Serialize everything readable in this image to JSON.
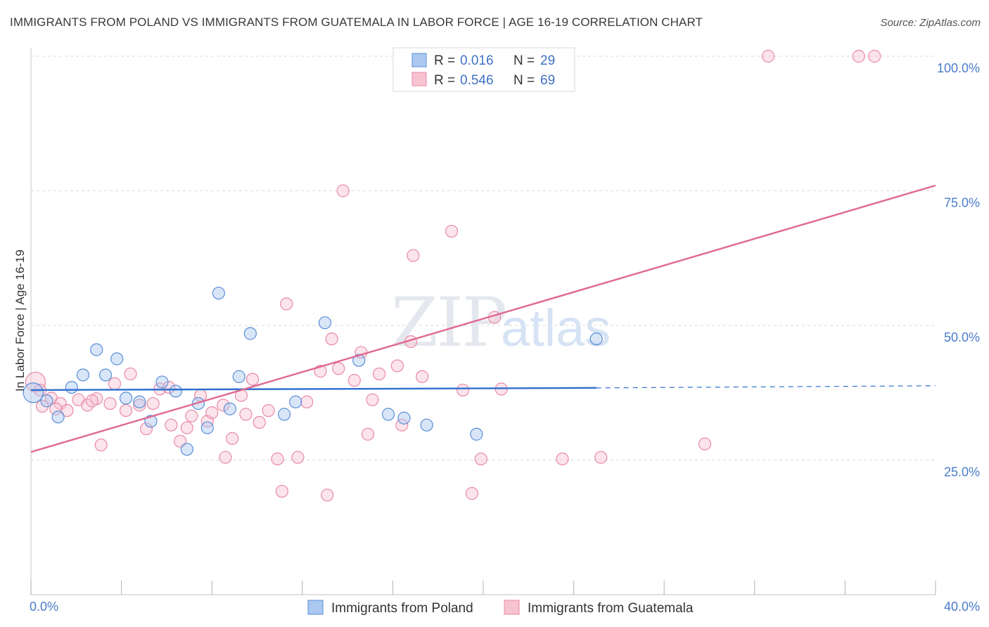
{
  "title": "IMMIGRANTS FROM POLAND VS IMMIGRANTS FROM GUATEMALA IN LABOR FORCE | AGE 16-19 CORRELATION CHART",
  "source": "Source: ZipAtlas.com",
  "watermark": {
    "zip": "ZIP",
    "atlas": "atlas"
  },
  "colors": {
    "poland_fill": "#aac8f0",
    "poland_stroke": "#5b8ed8",
    "poland_line": "#2f6fcf",
    "guatemala_fill": "#f7c3d2",
    "guatemala_stroke": "#e88aa6",
    "guatemala_line": "#e06890",
    "tick_text": "#4a7cc9",
    "grid": "#d9d9d9"
  },
  "legend": {
    "r_label": "R =",
    "n_label": "N =",
    "rows": [
      {
        "r": "0.016",
        "n": "29"
      },
      {
        "r": "0.546",
        "n": "69"
      }
    ]
  },
  "chart_data": {
    "type": "scatter",
    "title": "IMMIGRANTS FROM POLAND VS IMMIGRANTS FROM GUATEMALA IN LABOR FORCE | AGE 16-19 CORRELATION CHART",
    "xlabel": "",
    "ylabel": "In Labor Force | Age 16-19",
    "xlim": [
      0,
      40
    ],
    "ylim": [
      0,
      100
    ],
    "x_tick_labels": [
      "0.0%",
      "40.0%"
    ],
    "y_ticks": [
      25,
      50,
      75,
      100
    ],
    "y_tick_labels": [
      "25.0%",
      "50.0%",
      "75.0%",
      "100.0%"
    ],
    "grid": true,
    "legend_position": "top-center",
    "series": [
      {
        "name": "Immigrants from Poland",
        "r": 0.016,
        "n": 29,
        "trend": {
          "x0": 0,
          "y0": 38.0,
          "x1": 25,
          "y1": 38.4,
          "dashed_to_x": 40,
          "dashed_to_y": 38.8
        },
        "points": [
          [
            0.1,
            37.5
          ],
          [
            0.7,
            36.0
          ],
          [
            1.2,
            33.0
          ],
          [
            1.8,
            38.5
          ],
          [
            2.3,
            40.8
          ],
          [
            2.9,
            45.5
          ],
          [
            3.3,
            40.8
          ],
          [
            3.8,
            43.8
          ],
          [
            4.2,
            36.5
          ],
          [
            4.8,
            35.8
          ],
          [
            5.3,
            32.2
          ],
          [
            5.8,
            39.5
          ],
          [
            6.4,
            37.8
          ],
          [
            6.9,
            27.0
          ],
          [
            7.4,
            35.5
          ],
          [
            7.8,
            31.0
          ],
          [
            8.3,
            56.0
          ],
          [
            8.8,
            34.5
          ],
          [
            9.2,
            40.5
          ],
          [
            9.7,
            48.5
          ],
          [
            11.2,
            33.5
          ],
          [
            11.7,
            35.8
          ],
          [
            13.0,
            50.5
          ],
          [
            14.5,
            43.5
          ],
          [
            15.8,
            33.5
          ],
          [
            16.5,
            32.8
          ],
          [
            17.5,
            31.5
          ],
          [
            19.7,
            29.8
          ],
          [
            25.0,
            47.5
          ]
        ]
      },
      {
        "name": "Immigrants from Guatemala",
        "r": 0.546,
        "n": 69,
        "trend": {
          "x0": 0,
          "y0": 26.5,
          "x1": 40,
          "y1": 76.0
        },
        "points": [
          [
            0.2,
            39.5
          ],
          [
            0.5,
            35.0
          ],
          [
            0.9,
            36.5
          ],
          [
            1.3,
            35.5
          ],
          [
            1.6,
            34.2
          ],
          [
            2.1,
            36.2
          ],
          [
            2.5,
            35.2
          ],
          [
            2.9,
            36.4
          ],
          [
            3.1,
            27.8
          ],
          [
            3.5,
            35.5
          ],
          [
            3.7,
            39.2
          ],
          [
            4.2,
            34.2
          ],
          [
            4.4,
            41.0
          ],
          [
            4.8,
            35.2
          ],
          [
            5.1,
            30.8
          ],
          [
            5.4,
            35.5
          ],
          [
            5.7,
            38.2
          ],
          [
            6.1,
            38.5
          ],
          [
            6.2,
            31.5
          ],
          [
            6.6,
            28.5
          ],
          [
            6.9,
            31.0
          ],
          [
            7.1,
            33.2
          ],
          [
            7.5,
            37.0
          ],
          [
            7.8,
            32.2
          ],
          [
            8.0,
            33.8
          ],
          [
            8.5,
            35.2
          ],
          [
            8.6,
            25.5
          ],
          [
            8.9,
            29.0
          ],
          [
            9.3,
            37.0
          ],
          [
            9.5,
            33.5
          ],
          [
            9.8,
            40.0
          ],
          [
            10.1,
            32.0
          ],
          [
            10.5,
            34.2
          ],
          [
            10.9,
            25.2
          ],
          [
            11.1,
            19.2
          ],
          [
            11.3,
            54.0
          ],
          [
            11.8,
            25.5
          ],
          [
            12.2,
            35.8
          ],
          [
            12.8,
            41.5
          ],
          [
            13.1,
            18.5
          ],
          [
            13.3,
            47.5
          ],
          [
            13.6,
            42.0
          ],
          [
            13.8,
            75.0
          ],
          [
            14.3,
            39.8
          ],
          [
            14.6,
            45.0
          ],
          [
            14.9,
            29.8
          ],
          [
            15.1,
            36.2
          ],
          [
            15.4,
            41.0
          ],
          [
            16.2,
            42.5
          ],
          [
            16.4,
            31.5
          ],
          [
            16.8,
            47.0
          ],
          [
            16.9,
            63.0
          ],
          [
            17.3,
            40.5
          ],
          [
            18.6,
            67.5
          ],
          [
            19.1,
            38.0
          ],
          [
            19.5,
            18.8
          ],
          [
            19.9,
            25.2
          ],
          [
            20.4,
            100.0
          ],
          [
            20.5,
            51.5
          ],
          [
            20.8,
            38.2
          ],
          [
            23.5,
            25.2
          ],
          [
            25.2,
            25.5
          ],
          [
            29.8,
            28.0
          ],
          [
            32.6,
            100.0
          ],
          [
            36.6,
            100.0
          ],
          [
            37.3,
            100.0
          ],
          [
            0.4,
            38.0
          ],
          [
            1.1,
            34.5
          ],
          [
            2.7,
            36.0
          ]
        ]
      }
    ]
  }
}
